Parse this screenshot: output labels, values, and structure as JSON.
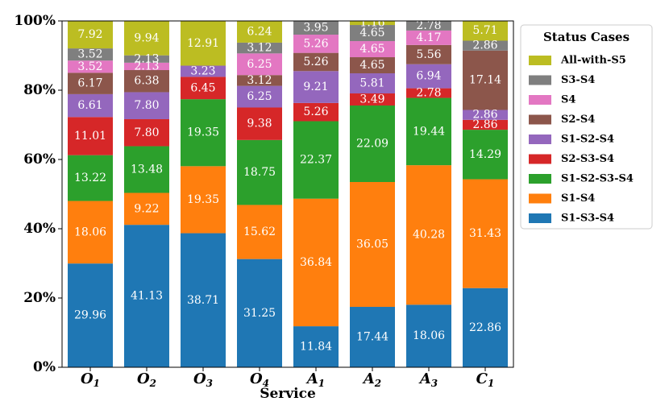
{
  "chart_data": {
    "type": "bar",
    "stacked": true,
    "xlabel": "Service",
    "ylabel": "",
    "ylim": [
      0,
      100
    ],
    "y_tick_labels": [
      "0%",
      "20%",
      "40%",
      "60%",
      "80%",
      "100%"
    ],
    "categories": [
      {
        "base": "O",
        "sub": "1"
      },
      {
        "base": "O",
        "sub": "2"
      },
      {
        "base": "O",
        "sub": "3"
      },
      {
        "base": "O",
        "sub": "4"
      },
      {
        "base": "A",
        "sub": "1"
      },
      {
        "base": "A",
        "sub": "2"
      },
      {
        "base": "A",
        "sub": "3"
      },
      {
        "base": "C",
        "sub": "1"
      }
    ],
    "legend_title": "Status Cases",
    "legend_position": "right",
    "series": [
      {
        "name": "S1-S3-S4",
        "color": "#1f77b4",
        "values": [
          29.96,
          41.13,
          38.71,
          31.25,
          11.84,
          17.44,
          18.06,
          22.86
        ]
      },
      {
        "name": "S1-S4",
        "color": "#ff7f0e",
        "values": [
          18.06,
          9.22,
          19.35,
          15.62,
          36.84,
          36.05,
          40.28,
          31.43
        ]
      },
      {
        "name": "S1-S2-S3-S4",
        "color": "#2ca02c",
        "values": [
          13.22,
          13.48,
          19.35,
          18.75,
          22.37,
          22.09,
          19.44,
          14.29
        ]
      },
      {
        "name": "S2-S3-S4",
        "color": "#d62728",
        "values": [
          11.01,
          7.8,
          6.45,
          9.38,
          5.26,
          3.49,
          2.78,
          2.86
        ]
      },
      {
        "name": "S1-S2-S4",
        "color": "#9467bd",
        "values": [
          6.61,
          7.8,
          3.23,
          6.25,
          9.21,
          5.81,
          6.94,
          2.86
        ]
      },
      {
        "name": "S2-S4",
        "color": "#8c564b",
        "values": [
          6.17,
          6.38,
          0,
          3.12,
          5.26,
          4.65,
          5.56,
          17.14
        ]
      },
      {
        "name": "S4",
        "color": "#e377c2",
        "values": [
          3.52,
          2.13,
          0,
          6.25,
          5.26,
          4.65,
          4.17,
          0
        ]
      },
      {
        "name": "S3-S4",
        "color": "#7f7f7f",
        "values": [
          3.52,
          2.13,
          0,
          3.12,
          3.95,
          4.65,
          2.78,
          2.86
        ]
      },
      {
        "name": "All-with-S5",
        "color": "#bcbd22",
        "values": [
          7.92,
          9.94,
          12.91,
          6.24,
          0,
          1.16,
          0,
          5.71
        ]
      }
    ]
  }
}
